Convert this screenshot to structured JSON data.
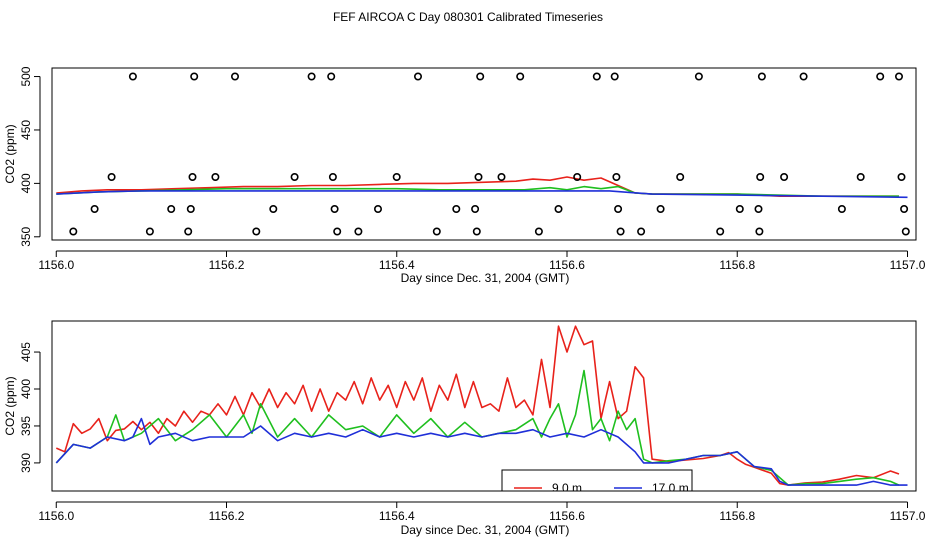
{
  "figure_title": "FEF AIRCOA C  Day 080301  Calibrated Timeseries",
  "colors": {
    "red": "#e8221b",
    "green": "#1fbf1f",
    "blue": "#1f2fd8",
    "frame": "#000000"
  },
  "chart_data": [
    {
      "type": "line",
      "panel": "top",
      "xlabel": "Day since Dec. 31, 2004 (GMT)",
      "ylabel": "CO2 (ppm)",
      "xlim": [
        1155.995,
        1157.01
      ],
      "ylim": [
        347,
        508
      ],
      "xticks": [
        1156.0,
        1156.2,
        1156.4,
        1156.6,
        1156.8,
        1157.0
      ],
      "xtick_labels": [
        "1156.0",
        "1156.2",
        "1156.4",
        "1156.6",
        "1156.8",
        "1157.0"
      ],
      "yticks": [
        350,
        400,
        450,
        500
      ],
      "ytick_labels": [
        "350",
        "400",
        "450",
        "500"
      ],
      "series": [
        {
          "name": "red",
          "color_key": "red",
          "x": [
            1156.0,
            1156.03,
            1156.06,
            1156.1,
            1156.14,
            1156.18,
            1156.22,
            1156.26,
            1156.3,
            1156.34,
            1156.38,
            1156.42,
            1156.46,
            1156.5,
            1156.54,
            1156.56,
            1156.58,
            1156.6,
            1156.62,
            1156.64,
            1156.66,
            1156.68,
            1156.7,
            1156.75,
            1156.8,
            1156.85,
            1156.9,
            1156.95,
            1156.99
          ],
          "y": [
            391,
            393,
            394,
            394,
            395,
            396,
            397,
            397,
            398,
            398,
            399,
            400,
            400,
            401,
            402,
            404,
            403,
            406,
            403,
            405,
            398,
            391,
            390,
            390,
            390,
            388,
            388,
            388,
            388
          ]
        },
        {
          "name": "green",
          "color_key": "green",
          "x": [
            1156.0,
            1156.05,
            1156.1,
            1156.15,
            1156.2,
            1156.25,
            1156.3,
            1156.35,
            1156.4,
            1156.45,
            1156.5,
            1156.55,
            1156.58,
            1156.6,
            1156.62,
            1156.64,
            1156.66,
            1156.68,
            1156.7,
            1156.8,
            1156.9,
            1156.99
          ],
          "y": [
            390,
            392,
            393,
            394,
            395,
            395,
            395,
            395,
            395,
            394,
            394,
            394,
            396,
            394,
            397,
            395,
            397,
            391,
            390,
            390,
            388,
            388
          ]
        },
        {
          "name": "blue",
          "color_key": "blue",
          "x": [
            1156.0,
            1156.05,
            1156.1,
            1156.15,
            1156.2,
            1156.3,
            1156.4,
            1156.5,
            1156.6,
            1156.65,
            1156.7,
            1156.8,
            1156.9,
            1157.0
          ],
          "y": [
            390,
            392,
            393,
            393,
            393,
            393,
            393,
            393,
            393,
            393,
            390,
            389,
            388,
            387
          ]
        }
      ],
      "flags": [
        {
          "x": 1156.02,
          "y": 355
        },
        {
          "x": 1156.045,
          "y": 376
        },
        {
          "x": 1156.065,
          "y": 406
        },
        {
          "x": 1156.09,
          "y": 500
        },
        {
          "x": 1156.11,
          "y": 355
        },
        {
          "x": 1156.135,
          "y": 376
        },
        {
          "x": 1156.155,
          "y": 355
        },
        {
          "x": 1156.158,
          "y": 376
        },
        {
          "x": 1156.16,
          "y": 406
        },
        {
          "x": 1156.162,
          "y": 500
        },
        {
          "x": 1156.187,
          "y": 406
        },
        {
          "x": 1156.21,
          "y": 500
        },
        {
          "x": 1156.235,
          "y": 355
        },
        {
          "x": 1156.255,
          "y": 376
        },
        {
          "x": 1156.28,
          "y": 406
        },
        {
          "x": 1156.3,
          "y": 500
        },
        {
          "x": 1156.323,
          "y": 500
        },
        {
          "x": 1156.325,
          "y": 406
        },
        {
          "x": 1156.327,
          "y": 376
        },
        {
          "x": 1156.33,
          "y": 355
        },
        {
          "x": 1156.355,
          "y": 355
        },
        {
          "x": 1156.378,
          "y": 376
        },
        {
          "x": 1156.4,
          "y": 406
        },
        {
          "x": 1156.425,
          "y": 500
        },
        {
          "x": 1156.447,
          "y": 355
        },
        {
          "x": 1156.47,
          "y": 376
        },
        {
          "x": 1156.492,
          "y": 376
        },
        {
          "x": 1156.494,
          "y": 355
        },
        {
          "x": 1156.496,
          "y": 406
        },
        {
          "x": 1156.498,
          "y": 500
        },
        {
          "x": 1156.523,
          "y": 406
        },
        {
          "x": 1156.545,
          "y": 500
        },
        {
          "x": 1156.567,
          "y": 355
        },
        {
          "x": 1156.59,
          "y": 376
        },
        {
          "x": 1156.612,
          "y": 406
        },
        {
          "x": 1156.635,
          "y": 500
        },
        {
          "x": 1156.656,
          "y": 500
        },
        {
          "x": 1156.658,
          "y": 406
        },
        {
          "x": 1156.66,
          "y": 376
        },
        {
          "x": 1156.663,
          "y": 355
        },
        {
          "x": 1156.687,
          "y": 355
        },
        {
          "x": 1156.71,
          "y": 376
        },
        {
          "x": 1156.733,
          "y": 406
        },
        {
          "x": 1156.755,
          "y": 500
        },
        {
          "x": 1156.78,
          "y": 355
        },
        {
          "x": 1156.803,
          "y": 376
        },
        {
          "x": 1156.825,
          "y": 376
        },
        {
          "x": 1156.826,
          "y": 355
        },
        {
          "x": 1156.827,
          "y": 406
        },
        {
          "x": 1156.829,
          "y": 500
        },
        {
          "x": 1156.855,
          "y": 406
        },
        {
          "x": 1156.878,
          "y": 500
        },
        {
          "x": 1156.923,
          "y": 376
        },
        {
          "x": 1156.945,
          "y": 406
        },
        {
          "x": 1156.968,
          "y": 500
        },
        {
          "x": 1156.99,
          "y": 500
        },
        {
          "x": 1156.993,
          "y": 406
        },
        {
          "x": 1156.996,
          "y": 376
        },
        {
          "x": 1156.998,
          "y": 355
        }
      ]
    },
    {
      "type": "line",
      "panel": "bottom",
      "xlabel": "Day since Dec. 31, 2004 (GMT)",
      "ylabel": "CO2 (ppm)",
      "xlim": [
        1155.995,
        1157.01
      ],
      "ylim": [
        386.2,
        409.2
      ],
      "xticks": [
        1156.0,
        1156.2,
        1156.4,
        1156.6,
        1156.8,
        1157.0
      ],
      "xtick_labels": [
        "1156.0",
        "1156.2",
        "1156.4",
        "1156.6",
        "1156.8",
        "1157.0"
      ],
      "yticks": [
        390,
        395,
        400,
        405
      ],
      "ytick_labels": [
        "390",
        "395",
        "400",
        "405"
      ],
      "legend": {
        "placement": "bottom-center-right",
        "entries": [
          {
            "label": "9.0 m",
            "color_key": "red"
          },
          {
            "label": "17.0 m",
            "color_key": "blue"
          }
        ]
      },
      "series": [
        {
          "name": "red",
          "color_key": "red",
          "x": [
            1156.0,
            1156.01,
            1156.02,
            1156.03,
            1156.04,
            1156.05,
            1156.06,
            1156.07,
            1156.08,
            1156.09,
            1156.1,
            1156.11,
            1156.12,
            1156.13,
            1156.14,
            1156.15,
            1156.16,
            1156.17,
            1156.18,
            1156.19,
            1156.2,
            1156.21,
            1156.22,
            1156.23,
            1156.24,
            1156.25,
            1156.26,
            1156.27,
            1156.28,
            1156.29,
            1156.3,
            1156.31,
            1156.32,
            1156.33,
            1156.34,
            1156.35,
            1156.36,
            1156.37,
            1156.38,
            1156.39,
            1156.4,
            1156.41,
            1156.42,
            1156.43,
            1156.44,
            1156.45,
            1156.46,
            1156.47,
            1156.48,
            1156.49,
            1156.5,
            1156.51,
            1156.52,
            1156.53,
            1156.54,
            1156.55,
            1156.56,
            1156.57,
            1156.58,
            1156.59,
            1156.6,
            1156.61,
            1156.62,
            1156.63,
            1156.64,
            1156.65,
            1156.66,
            1156.67,
            1156.68,
            1156.69,
            1156.7,
            1156.72,
            1156.74,
            1156.76,
            1156.78,
            1156.79,
            1156.8,
            1156.81,
            1156.82,
            1156.84,
            1156.85,
            1156.86,
            1156.88,
            1156.9,
            1156.92,
            1156.94,
            1156.96,
            1156.98,
            1156.99
          ],
          "y": [
            392.0,
            391.5,
            395.3,
            394.0,
            394.6,
            396.0,
            393.0,
            394.4,
            394.6,
            395.6,
            394.5,
            395.5,
            394.0,
            396.0,
            395.0,
            397.0,
            395.5,
            397.0,
            396.5,
            398.0,
            396.5,
            399.0,
            396.5,
            399.5,
            397.5,
            400.0,
            397.5,
            399.5,
            398.0,
            400.5,
            397.0,
            400.0,
            397.0,
            399.5,
            398.5,
            401.0,
            398.0,
            401.5,
            398.5,
            400.5,
            397.5,
            401.0,
            398.5,
            401.5,
            397.0,
            400.5,
            398.5,
            402.0,
            397.5,
            401.0,
            397.5,
            398.0,
            397.0,
            401.5,
            397.5,
            398.5,
            396.5,
            404.0,
            397.5,
            408.5,
            405.0,
            408.5,
            406.0,
            406.5,
            396.0,
            401.0,
            396.0,
            397.0,
            403.0,
            401.5,
            390.5,
            390.2,
            390.4,
            390.6,
            391.0,
            391.4,
            390.5,
            389.8,
            389.4,
            388.6,
            387.2,
            387.0,
            387.3,
            387.4,
            387.8,
            388.3,
            388.0,
            388.9,
            388.5
          ]
        },
        {
          "name": "green",
          "color_key": "green",
          "x": [
            1156.0,
            1156.02,
            1156.04,
            1156.06,
            1156.07,
            1156.08,
            1156.1,
            1156.12,
            1156.14,
            1156.16,
            1156.18,
            1156.2,
            1156.22,
            1156.23,
            1156.24,
            1156.26,
            1156.28,
            1156.3,
            1156.32,
            1156.34,
            1156.36,
            1156.38,
            1156.4,
            1156.42,
            1156.44,
            1156.46,
            1156.48,
            1156.5,
            1156.52,
            1156.54,
            1156.56,
            1156.57,
            1156.58,
            1156.59,
            1156.6,
            1156.61,
            1156.62,
            1156.63,
            1156.64,
            1156.65,
            1156.66,
            1156.67,
            1156.68,
            1156.69,
            1156.7,
            1156.72,
            1156.74,
            1156.76,
            1156.78,
            1156.8,
            1156.82,
            1156.84,
            1156.86,
            1156.88,
            1156.9,
            1156.92,
            1156.94,
            1156.96,
            1156.98,
            1156.99
          ],
          "y": [
            390.0,
            392.5,
            392.0,
            393.5,
            396.5,
            393.0,
            394.0,
            396.0,
            393.0,
            394.5,
            396.5,
            393.5,
            396.5,
            394.0,
            398.0,
            393.5,
            396.0,
            393.5,
            396.5,
            394.5,
            395.0,
            393.5,
            396.5,
            394.0,
            396.0,
            393.5,
            395.5,
            393.5,
            394.0,
            394.5,
            396.0,
            393.5,
            396.0,
            398.0,
            393.5,
            396.5,
            402.5,
            394.5,
            396.0,
            393.0,
            397.0,
            394.5,
            396.0,
            390.5,
            390.0,
            390.3,
            390.5,
            391.0,
            391.0,
            391.5,
            389.5,
            389.0,
            387.0,
            387.2,
            387.2,
            387.5,
            387.8,
            388.0,
            387.5,
            387.0
          ]
        },
        {
          "name": "blue",
          "color_key": "blue",
          "x": [
            1156.0,
            1156.02,
            1156.04,
            1156.06,
            1156.08,
            1156.09,
            1156.1,
            1156.11,
            1156.12,
            1156.14,
            1156.16,
            1156.18,
            1156.2,
            1156.22,
            1156.24,
            1156.26,
            1156.28,
            1156.3,
            1156.32,
            1156.34,
            1156.36,
            1156.38,
            1156.4,
            1156.42,
            1156.44,
            1156.46,
            1156.48,
            1156.5,
            1156.52,
            1156.54,
            1156.56,
            1156.58,
            1156.6,
            1156.62,
            1156.64,
            1156.66,
            1156.68,
            1156.69,
            1156.7,
            1156.72,
            1156.74,
            1156.76,
            1156.78,
            1156.8,
            1156.82,
            1156.84,
            1156.85,
            1156.86,
            1156.88,
            1156.9,
            1156.92,
            1156.94,
            1156.96,
            1156.98,
            1157.0
          ],
          "y": [
            390.0,
            392.5,
            392.0,
            393.5,
            393.0,
            393.5,
            396.0,
            392.5,
            393.5,
            394.0,
            393.0,
            393.5,
            393.5,
            393.5,
            395.0,
            393.0,
            394.0,
            393.5,
            394.0,
            393.5,
            394.5,
            393.5,
            394.0,
            393.5,
            394.0,
            393.5,
            394.0,
            393.5,
            394.0,
            394.0,
            394.5,
            393.5,
            394.0,
            393.5,
            394.5,
            393.5,
            391.5,
            390.0,
            390.0,
            390.0,
            390.5,
            391.0,
            391.0,
            391.5,
            389.5,
            389.2,
            387.5,
            387.0,
            387.0,
            387.0,
            387.0,
            387.0,
            387.5,
            387.0,
            387.0
          ]
        }
      ]
    }
  ]
}
